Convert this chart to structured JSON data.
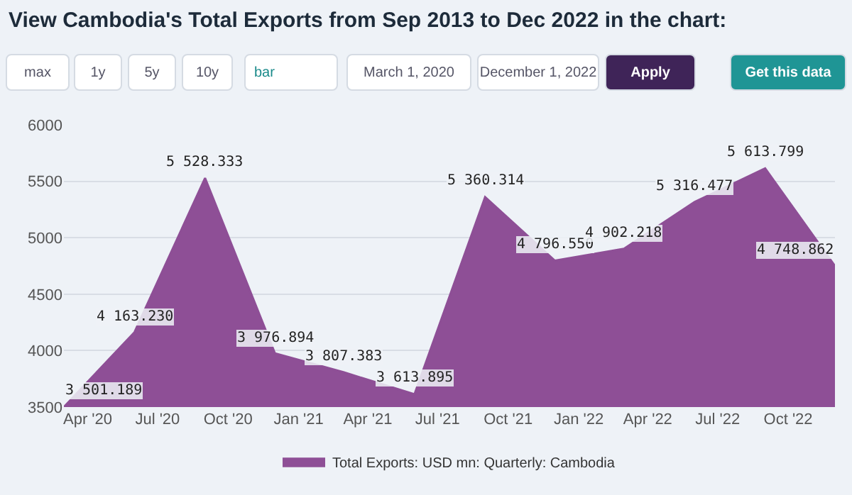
{
  "chart_data": {
    "type": "area",
    "title": "View Cambodia's Total Exports from Sep 2013 to Dec 2022 in the chart:",
    "annotations": [
      "max",
      "1y",
      "5y",
      "10y",
      "bar",
      "March 1, 2020",
      "December 1, 2022",
      "Apply",
      "Get this data"
    ],
    "x": [
      "2020-03-01",
      "2020-06-01",
      "2020-09-01",
      "2020-12-01",
      "2021-03-01",
      "2021-06-01",
      "2021-09-01",
      "2021-12-01",
      "2022-03-01",
      "2022-06-01",
      "2022-09-01",
      "2022-12-01"
    ],
    "series": [
      {
        "name": "Total Exports: USD mn: Quarterly: Cambodia",
        "color": "#8e4f96",
        "values": [
          3501.189,
          4163.23,
          5528.333,
          3976.894,
          3807.383,
          3613.895,
          5360.314,
          4796.55,
          4902.218,
          5316.477,
          5613.799,
          4748.862
        ],
        "value_labels": [
          "3 501.189",
          "4 163.230",
          "5 528.333",
          "3 976.894",
          "3 807.383",
          "3 613.895",
          "5 360.314",
          "4 796.550",
          "4 902.218",
          "5 316.477",
          "5 613.799",
          "4 748.862"
        ]
      }
    ],
    "xlim": [
      "2020-03-01",
      "2022-12-01"
    ],
    "xticks": [
      {
        "value": "2020-04-01",
        "label": "Apr '20"
      },
      {
        "value": "2020-07-01",
        "label": "Jul '20"
      },
      {
        "value": "2020-10-01",
        "label": "Oct '20"
      },
      {
        "value": "2021-01-01",
        "label": "Jan '21"
      },
      {
        "value": "2021-04-01",
        "label": "Apr '21"
      },
      {
        "value": "2021-07-01",
        "label": "Jul '21"
      },
      {
        "value": "2021-10-01",
        "label": "Oct '21"
      },
      {
        "value": "2022-01-01",
        "label": "Jan '22"
      },
      {
        "value": "2022-04-01",
        "label": "Apr '22"
      },
      {
        "value": "2022-07-01",
        "label": "Jul '22"
      },
      {
        "value": "2022-10-01",
        "label": "Oct '22"
      }
    ],
    "ylim": [
      3500,
      6000
    ],
    "yticks": [
      3500,
      4000,
      4500,
      5000,
      5500,
      6000
    ],
    "grid": "y",
    "legend": "bottom"
  }
}
